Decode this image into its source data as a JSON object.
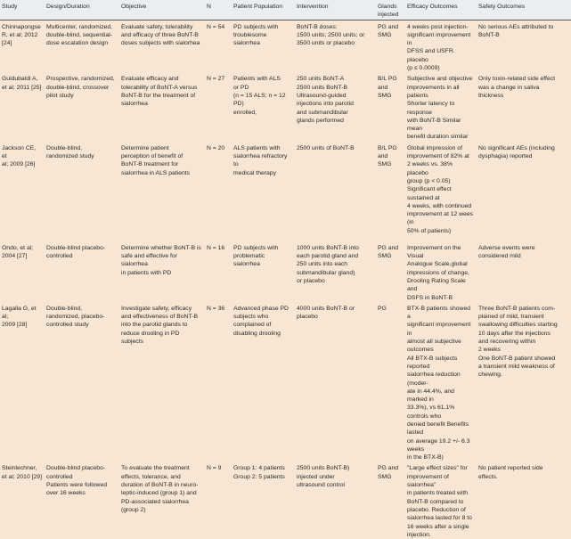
{
  "headers": [
    "Study",
    "Design/Duration",
    "Objective",
    "N",
    "Patient Population",
    "Intervention",
    "Glands\ninjected",
    "Efficacy Outcomes",
    "Safety Outcomes"
  ],
  "rows": [
    {
      "study": "Chinnapongse\nR, et al; 2012\n[24]",
      "design": "Multicenter, randomized,\ndouble-blind, sequential-\ndose escalation design",
      "objective": "Evaluate safety, tolerability\nand efficacy of three BoNT-B\ndoses subjects with sialorhea",
      "n": "N = 54",
      "population": "PD subjects with\ntroublesome sialorrhea",
      "intervention": "BoNT-B doses:\n1500 units; 2500 units; or\n3500 units or placebo",
      "glands": "PG and\nSMG",
      "efficacy": "4 weeks post injection-\nsignificant improvement in\nDFSS and USFR. placebo\n(p ≤ 0.0009)",
      "safety": "No serious AEs attributed to\nBoNT-B"
    },
    {
      "study": "Guidubaldi A,\net al; 2011 [25]",
      "design": "Prospective, randomized,\ndouble-blind, crossover\npilot study",
      "objective": "Evaluate efficacy and\ntolerability of BoNT-A versus\nBoNT-B for the treatment of\nsialorrhea",
      "n": "N = 27",
      "population": "Patients with ALS\nor PD\n(n = 15 ALS; n = 12 PD)\nenrolled,",
      "intervention": "250 units BoNT-A\n2500 units BoNT-B\nUltrasound-guided\ninjections into parotid\nand submandibular\nglands performed",
      "glands": "B/L PG\nand\nSMG",
      "efficacy": "Subjective and objective\nimprovements in all patients\nShorter latency to response\nwith BoNT-B Similar mean\nbenefit duration similar",
      "safety": "Only toxin-related side effect\nwas a change in saliva\nthickness"
    },
    {
      "study": "Jackson CE, et\nal; 2009 [26]",
      "design": "Double-blind,\nrandomized study",
      "objective": "Determine patient\nperception of benefit of\nBoNT-B treatment for\nsialorrhea in ALS patients",
      "n": "N = 20",
      "population": "ALS patients with\nsialorrhea refractory to\nmedical therapy",
      "intervention": "2500 units of BoNT-B",
      "glands": "B/L PG\nand\nSMG",
      "efficacy": "Global impression of\nimprovement of 82% at\n2 weeks vs. 38% placebo\ngroup (p < 0.05)\nSignificant effect sustained at\n4 weeks, with continued\nimprovement at 12 wees (in\n50% of patients)",
      "safety": "No significant AEs (including\ndysphagia) reported"
    },
    {
      "study": "Ondo, et al;\n2004 [27]",
      "design": "Double-blind placebo-\ncontrolled",
      "objective": "Determine whether BoNT-B is\nsafe and effective for sialorrhea\nin patients with PD",
      "n": "N = 16",
      "population": "PD subjects with\nproblematic sialorrhea",
      "intervention": "1000 units BoNT-B into\neach parotid gland and\n250 units into each\nsubmandibular gland)\nor placebo",
      "glands": "PG and\nSMG",
      "efficacy": "Improvement on the Visual\nAnalogue Scale,global\nimpressions of change,\nDrooling Rating Scale and\nDSFS in BoNT-B",
      "safety": "Adverse events were\nconsidered mild"
    },
    {
      "study": "Lagalla G, et al;\n2009 [28]",
      "design": "Double-blind,\nrandomized, placebo-\ncontrolled study",
      "objective": "Investigate safety, efficacy\nand effectiveness of BoNT-B\ninto the parotid glands to\nreduce drooling in PD\nsubjects",
      "n": "N = 36",
      "population": "Advanced phase PD\nsubjects who\ncomplained of\ndisabling drooling",
      "intervention": "4000 units BoNT-B or\nplacebo",
      "glands": "PG",
      "efficacy": "BTX-B patients showed a\nsignificant improvement in\nalmost all subjective\noutcomes\nAll BTX-B subjects reported\nsialorrhea reduction (moder-\nate in 44.4%, and marked in\n33.3%), vs 61.1% controls who\ndenied benefit Benefits lasted\non average 19.2 +/- 6.3 weeks\nin the BTX-B)",
      "safety": "Three BoNT-B patients com-\nplained of mild, transient\nswallowing difficulties starting\n10 days after the injections\nand recovering within\n2 weeks\nOne BoNT-B patient showed\na transient mild weakness of\nchewing."
    },
    {
      "study": "Steinlechner,\net al; 2010 [29]",
      "design": "Double-blind placebo-\ncontrolled\nPatients were followed\nover 16 weeks",
      "objective": "To evaluate the treatment\neffects, tolerance, and\nduration of BoNT-B in neuro-\nleptic-induced (group 1) and\nPD-associated sialorrhea\n(group 2)",
      "n": "N = 9",
      "population": "Group 1: 4 patients\nGroup 2: 5 patients",
      "intervention": "2500 units BoNT-B)\ninjected under\nultrasound control",
      "glands": "PG and\nSMG",
      "efficacy": "\"Large effect sizes\" for\nimprovement of sialorrhea\"\nin patients treated with\nBoNT-B compared to\nplacebo. Reduction of\nsialorrhea lasted for 8 to\n16 weeks after a single\ninjection.",
      "safety": "No patient reported side\neffects."
    }
  ]
}
